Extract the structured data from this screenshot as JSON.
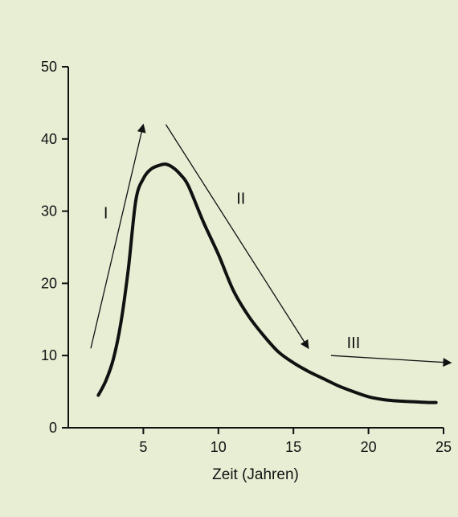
{
  "colors": {
    "background": "#e7eed4",
    "ink": "#111111"
  },
  "chart_data": {
    "type": "line",
    "title": "",
    "xlabel": "Zeit (Jahren)",
    "ylabel": "",
    "xlim": [
      0,
      25
    ],
    "ylim": [
      0,
      50
    ],
    "x_ticks": [
      "0",
      "5",
      "10",
      "15",
      "20",
      "25"
    ],
    "y_ticks": [
      "0",
      "10",
      "20",
      "30",
      "40",
      "50"
    ],
    "grid": false,
    "series": [
      {
        "x": [
          2.0,
          2.5,
          3.0,
          3.5,
          4.0,
          4.5,
          5.0,
          5.5,
          6.0,
          6.5,
          7.0,
          7.5,
          8.0,
          9.0,
          10.0,
          11.0,
          12.0,
          13.0,
          14.0,
          15.0,
          16.0,
          17.0,
          18.0,
          19.0,
          20.0,
          21.0,
          22.0,
          23.0,
          24.0,
          24.5
        ],
        "y": [
          4.5,
          6.5,
          9.5,
          14.5,
          22.0,
          31.5,
          34.5,
          35.8,
          36.3,
          36.5,
          36.0,
          35.0,
          33.5,
          28.5,
          24.0,
          19.0,
          15.5,
          12.8,
          10.5,
          9.0,
          7.8,
          6.8,
          5.8,
          5.0,
          4.3,
          3.9,
          3.7,
          3.6,
          3.5,
          3.5
        ]
      }
    ],
    "annotations": [
      {
        "label": "I",
        "x": 2.5,
        "y": 29.0,
        "arrow_from": [
          1.5,
          11.0
        ],
        "arrow_to": [
          5.0,
          42.0
        ]
      },
      {
        "label": "II",
        "x": 11.5,
        "y": 31.0,
        "arrow_from": [
          6.5,
          42.0
        ],
        "arrow_to": [
          16.0,
          11.0
        ]
      },
      {
        "label": "III",
        "x": 19.0,
        "y": 11.0,
        "arrow_from": [
          17.5,
          10.0
        ],
        "arrow_to": [
          25.5,
          9.0
        ]
      }
    ]
  }
}
